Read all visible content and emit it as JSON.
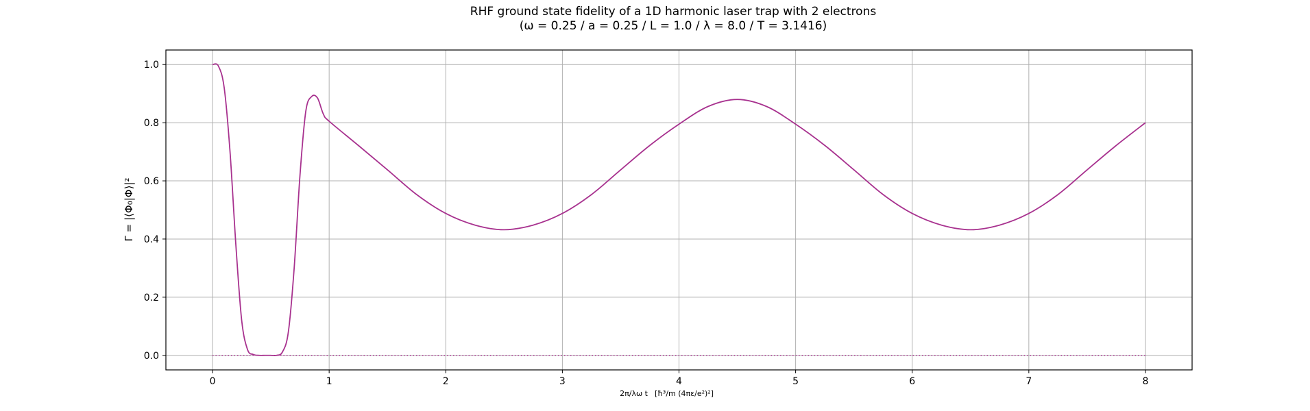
{
  "chart_data": {
    "type": "line",
    "title": [
      "RHF ground state fidelity of a 1D harmonic laser trap with 2 electrons",
      "(ω = 0.25 / a = 0.25 / L = 1.0 / λ = 8.0 / T = 3.1416)"
    ],
    "ylabel": "Γ = |⟨Φ₀|Φ⟩|²",
    "xlabel": {
      "main": "2π/λω t",
      "units": "[ħ³/m (4πε/e²)²]"
    },
    "xlim": [
      -0.4,
      8.4
    ],
    "ylim": [
      -0.05,
      1.05
    ],
    "xticks": [
      0,
      1,
      2,
      3,
      4,
      5,
      6,
      7,
      8
    ],
    "yticks": [
      0.0,
      0.2,
      0.4,
      0.6,
      0.8,
      1.0
    ],
    "xtick_labels": [
      "0",
      "1",
      "2",
      "3",
      "4",
      "5",
      "6",
      "7",
      "8"
    ],
    "ytick_labels": [
      "0.0",
      "0.2",
      "0.4",
      "0.6",
      "0.8",
      "1.0"
    ],
    "grid": true,
    "colors": {
      "line": "#a8328f"
    },
    "series": [
      {
        "style": "solid",
        "x": [
          0,
          0.05,
          0.1,
          0.15,
          0.2,
          0.25,
          0.3,
          0.35,
          0.4,
          0.45,
          0.5,
          0.55,
          0.6,
          0.65,
          0.7,
          0.75,
          0.8,
          0.85,
          0.9,
          0.95,
          1.0,
          1.25,
          1.5,
          1.75,
          2.0,
          2.25,
          2.5,
          2.75,
          3.0,
          3.25,
          3.5,
          3.75,
          4.0,
          4.25,
          4.5,
          4.75,
          5.0,
          5.25,
          5.5,
          5.75,
          6.0,
          6.25,
          6.5,
          6.75,
          7.0,
          7.25,
          7.5,
          7.75,
          8.0
        ],
        "y": [
          1.0,
          0.995,
          0.92,
          0.7,
          0.38,
          0.12,
          0.02,
          0.003,
          0.0,
          0.0,
          0.0,
          0.0,
          0.012,
          0.08,
          0.3,
          0.62,
          0.84,
          0.89,
          0.885,
          0.83,
          0.805,
          0.722,
          0.638,
          0.553,
          0.488,
          0.448,
          0.432,
          0.448,
          0.488,
          0.553,
          0.638,
          0.722,
          0.795,
          0.856,
          0.88,
          0.856,
          0.795,
          0.722,
          0.638,
          0.553,
          0.488,
          0.448,
          0.432,
          0.448,
          0.488,
          0.553,
          0.638,
          0.722,
          0.8
        ]
      },
      {
        "style": "dotted",
        "x": [
          0,
          8
        ],
        "y": [
          0,
          0
        ]
      }
    ]
  }
}
